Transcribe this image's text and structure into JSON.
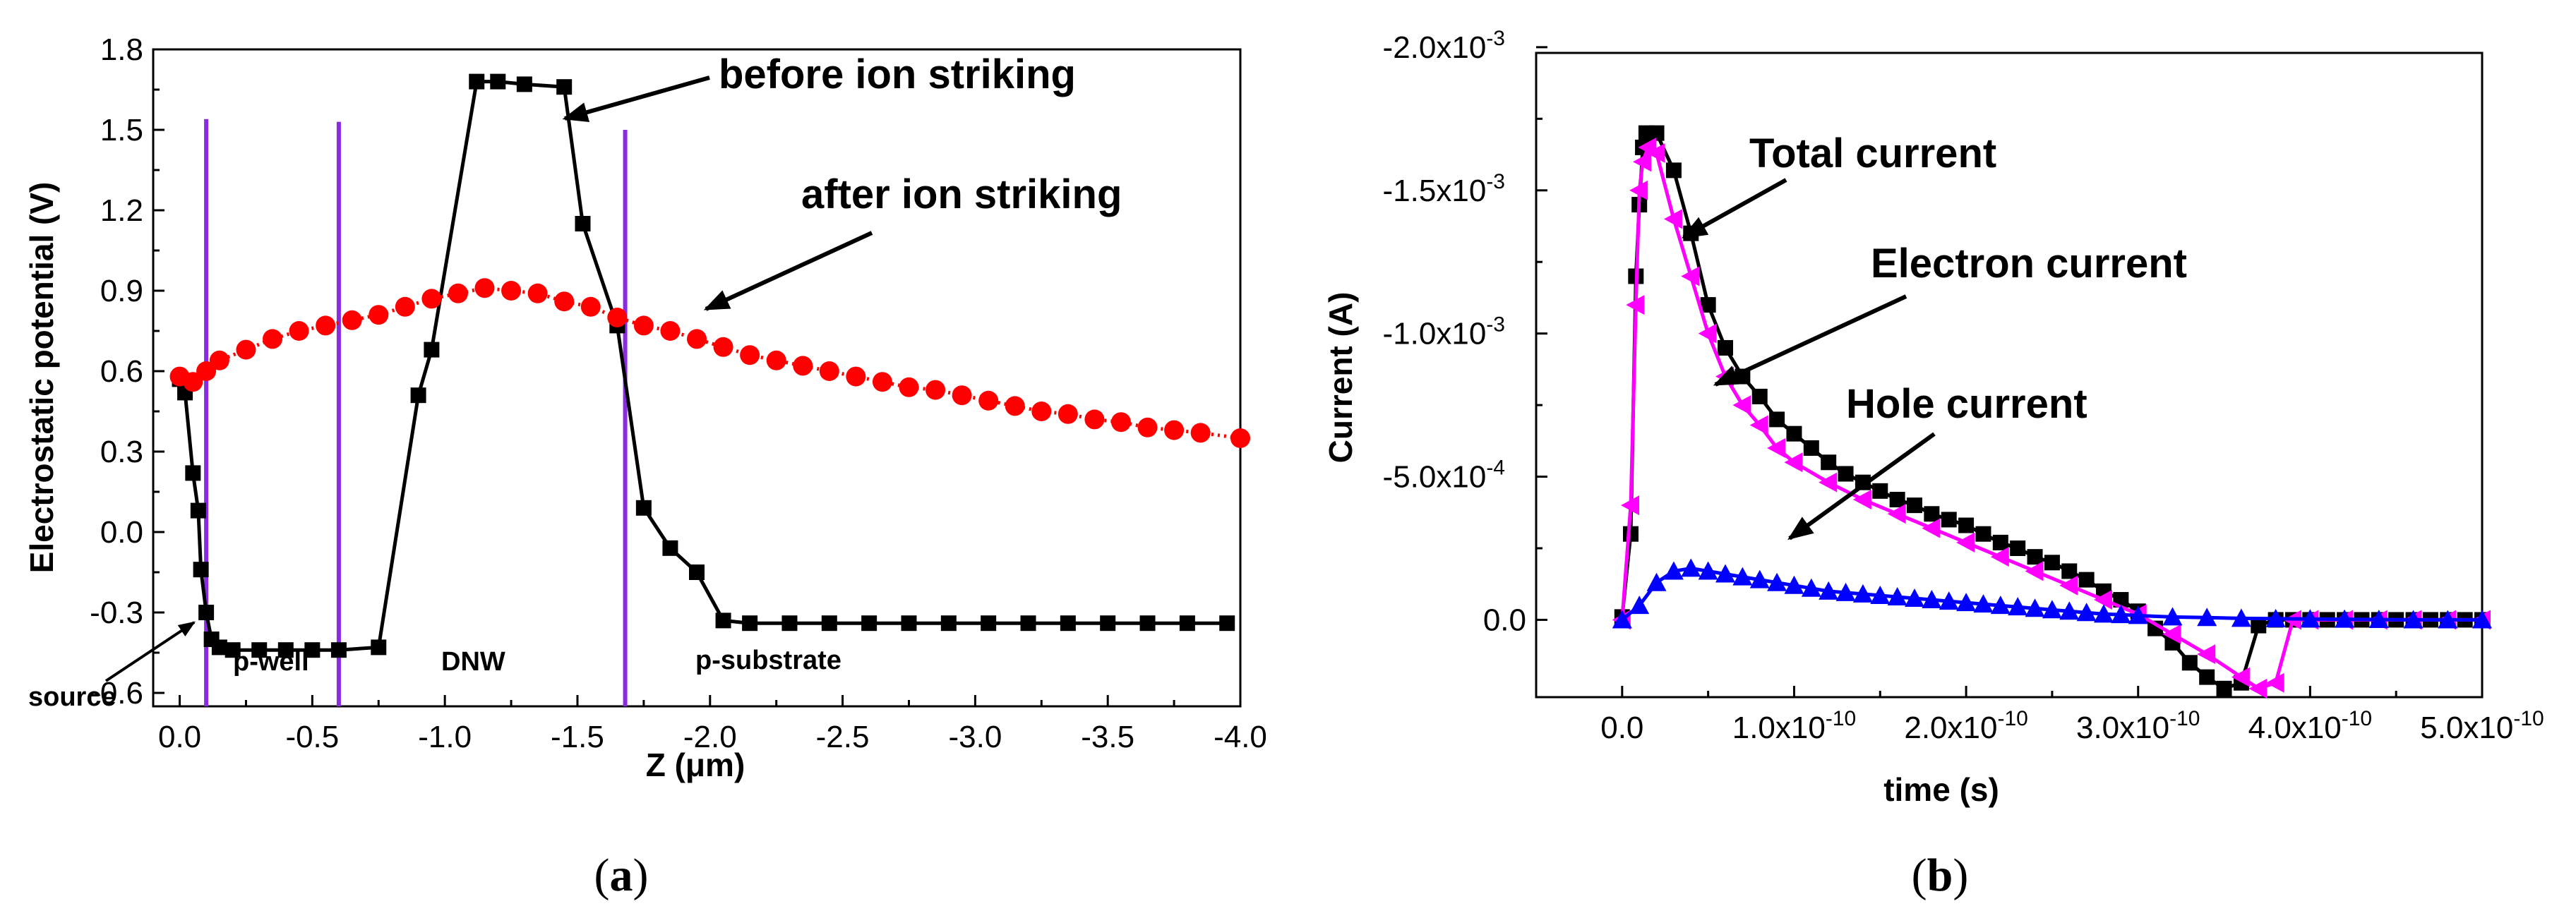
{
  "chart_data": [
    {
      "panel": "(a)",
      "type": "scatter",
      "xlabel": "Z (μm)",
      "ylabel": "Electrostatic potential (V)",
      "xlim": [
        0.1,
        -4.0
      ],
      "ylim": [
        -0.65,
        1.8
      ],
      "xticks": [
        0,
        -0.5,
        -1.0,
        -1.5,
        -2.0,
        -2.5,
        -3.0,
        -3.5,
        -4.0
      ],
      "xtick_labels": [
        "0.0",
        "-0.5",
        "-1.0",
        "-1.5",
        "-2.0",
        "-2.5",
        "-3.0",
        "-3.5",
        "-4.0"
      ],
      "yticks": [
        -0.6,
        -0.3,
        0.0,
        0.3,
        0.6,
        0.9,
        1.2,
        1.5,
        1.8
      ],
      "ytick_labels": [
        "-0.6",
        "-0.3",
        "0.0",
        "0.3",
        "0.6",
        "0.9",
        "1.2",
        "1.5",
        "1.8"
      ],
      "series": [
        {
          "name": "before ion striking",
          "color": "#000000",
          "marker": "square",
          "x": [
            0.0,
            -0.02,
            -0.05,
            -0.07,
            -0.08,
            -0.1,
            -0.12,
            -0.15,
            -0.2,
            -0.3,
            -0.4,
            -0.5,
            -0.6,
            -0.75,
            -0.9,
            -0.95,
            -1.12,
            -1.2,
            -1.3,
            -1.45,
            -1.52,
            -1.65,
            -1.75,
            -1.85,
            -1.95,
            -2.05,
            -2.15,
            -2.3,
            -2.45,
            -2.6,
            -2.75,
            -2.9,
            -3.05,
            -3.2,
            -3.35,
            -3.5,
            -3.65,
            -3.8,
            -3.95
          ],
          "y": [
            0.57,
            0.52,
            0.22,
            0.08,
            -0.14,
            -0.3,
            -0.4,
            -0.43,
            -0.44,
            -0.44,
            -0.44,
            -0.44,
            -0.44,
            -0.43,
            0.51,
            0.68,
            1.68,
            1.68,
            1.67,
            1.66,
            1.15,
            0.77,
            0.09,
            -0.06,
            -0.15,
            -0.33,
            -0.34,
            -0.34,
            -0.34,
            -0.34,
            -0.34,
            -0.34,
            -0.34,
            -0.34,
            -0.34,
            -0.34,
            -0.34,
            -0.34,
            -0.34
          ]
        },
        {
          "name": "after ion striking",
          "color": "#ff0000",
          "marker": "circle",
          "x": [
            0.0,
            -0.05,
            -0.1,
            -0.15,
            -0.25,
            -0.35,
            -0.45,
            -0.55,
            -0.65,
            -0.75,
            -0.85,
            -0.95,
            -1.05,
            -1.15,
            -1.25,
            -1.35,
            -1.45,
            -1.55,
            -1.65,
            -1.75,
            -1.85,
            -1.95,
            -2.05,
            -2.15,
            -2.25,
            -2.35,
            -2.45,
            -2.55,
            -2.65,
            -2.75,
            -2.85,
            -2.95,
            -3.05,
            -3.15,
            -3.25,
            -3.35,
            -3.45,
            -3.55,
            -3.65,
            -3.75,
            -3.85,
            -4.0
          ],
          "y": [
            0.58,
            0.56,
            0.6,
            0.64,
            0.68,
            0.72,
            0.75,
            0.77,
            0.79,
            0.81,
            0.84,
            0.87,
            0.89,
            0.91,
            0.9,
            0.89,
            0.86,
            0.84,
            0.8,
            0.77,
            0.75,
            0.72,
            0.69,
            0.66,
            0.64,
            0.62,
            0.6,
            0.58,
            0.56,
            0.54,
            0.53,
            0.51,
            0.49,
            0.47,
            0.45,
            0.44,
            0.42,
            0.41,
            0.39,
            0.38,
            0.37,
            0.35
          ]
        }
      ],
      "vertical_lines": {
        "color": "#8a2be2",
        "x": [
          -0.1,
          -0.6,
          -1.68
        ],
        "top": [
          1.54,
          1.53,
          1.5
        ]
      },
      "annotations": [
        "before ion striking",
        "after ion striking",
        "source",
        "p-well",
        "DNW",
        "p-substrate"
      ]
    },
    {
      "panel": "(b)",
      "type": "scatter",
      "xlabel": "time (s)",
      "ylabel": "Current (A)",
      "xlim": [
        -5e-11,
        5e-10
      ],
      "ylim": [
        0.00027,
        -0.00198
      ],
      "xticks": [
        0,
        1e-10,
        2e-10,
        3e-10,
        4e-10,
        5e-10
      ],
      "xtick_labels": [
        "0.0",
        "1.0x10",
        "2.0x10",
        "3.0x10",
        "4.0x10",
        "5.0x10"
      ],
      "xtick_exponents": [
        "",
        "-10",
        "-10",
        "-10",
        "-10",
        "-10"
      ],
      "yticks": [
        0.0,
        -0.0005,
        -0.001,
        -0.0015,
        -0.002
      ],
      "ytick_labels": [
        "0.0",
        "-5.0x10",
        "-1.0x10",
        "-1.5x10",
        "-2.0x10"
      ],
      "ytick_exponents": [
        "",
        "-4",
        "-3",
        "-3",
        "-3"
      ],
      "series": [
        {
          "name": "Total current",
          "color": "#000000",
          "marker": "square",
          "x": [
            0.0,
            5e-12,
            8e-12,
            1e-11,
            1.2e-11,
            1.4e-11,
            2e-11,
            3e-11,
            4e-11,
            5e-11,
            6e-11,
            7e-11,
            8e-11,
            9e-11,
            1e-10,
            1.1e-10,
            1.2e-10,
            1.3e-10,
            1.4e-10,
            1.5e-10,
            1.6e-10,
            1.7e-10,
            1.8e-10,
            1.9e-10,
            2e-10,
            2.1e-10,
            2.2e-10,
            2.3e-10,
            2.4e-10,
            2.5e-10,
            2.6e-10,
            2.7e-10,
            2.8e-10,
            2.9e-10,
            3e-10,
            3.1e-10,
            3.2e-10,
            3.3e-10,
            3.4e-10,
            3.5e-10,
            3.6e-10,
            3.7e-10,
            3.8e-10,
            3.9e-10,
            4e-10,
            4.1e-10,
            4.2e-10,
            4.3e-10,
            4.4e-10,
            4.5e-10,
            4.6e-10,
            4.7e-10,
            4.8e-10,
            4.9e-10,
            5e-10
          ],
          "y": [
            -1e-05,
            -0.0003,
            -0.0012,
            -0.00145,
            -0.00165,
            -0.0017,
            -0.0017,
            -0.00157,
            -0.00135,
            -0.0011,
            -0.00095,
            -0.00085,
            -0.00078,
            -0.0007,
            -0.00065,
            -0.0006,
            -0.00055,
            -0.00051,
            -0.00048,
            -0.00045,
            -0.00042,
            -0.0004,
            -0.00037,
            -0.00035,
            -0.00033,
            -0.0003,
            -0.00027,
            -0.00025,
            -0.00022,
            -0.0002,
            -0.00017,
            -0.00014,
            -0.0001,
            -7e-05,
            -3e-05,
            3e-05,
            8e-05,
            0.00015,
            0.0002,
            0.00024,
            0.00022,
            2e-05,
            0.0,
            0.0,
            0.0,
            0.0,
            0.0,
            0.0,
            0.0,
            0.0,
            0.0,
            0.0,
            0.0,
            0.0,
            0.0
          ]
        },
        {
          "name": "Electron current",
          "color": "#ff00ff",
          "marker": "triangle-left",
          "x": [
            0.0,
            5e-12,
            8e-12,
            1e-11,
            1.2e-11,
            1.5e-11,
            2e-11,
            3e-11,
            4e-11,
            5e-11,
            6e-11,
            7e-11,
            8e-11,
            9e-11,
            1e-10,
            1.2e-10,
            1.4e-10,
            1.6e-10,
            1.8e-10,
            2e-10,
            2.2e-10,
            2.4e-10,
            2.6e-10,
            2.8e-10,
            3e-10,
            3.2e-10,
            3.4e-10,
            3.6e-10,
            3.7e-10,
            3.8e-10,
            3.9e-10,
            4e-10,
            4.2e-10,
            4.4e-10,
            4.6e-10,
            4.8e-10,
            5e-10
          ],
          "y": [
            0.0,
            -0.0004,
            -0.0011,
            -0.0015,
            -0.0016,
            -0.00165,
            -0.00163,
            -0.0014,
            -0.0012,
            -0.001,
            -0.00085,
            -0.00075,
            -0.00068,
            -0.0006,
            -0.00055,
            -0.00048,
            -0.00042,
            -0.00037,
            -0.00032,
            -0.00027,
            -0.00022,
            -0.00017,
            -0.00012,
            -7e-05,
            -2e-05,
            5e-05,
            0.00012,
            0.0002,
            0.00024,
            0.00022,
            0.0,
            0.0,
            0.0,
            0.0,
            0.0,
            0.0,
            0.0
          ]
        },
        {
          "name": "Hole current",
          "color": "#0000ff",
          "marker": "triangle-up",
          "x": [
            0.0,
            1e-11,
            2e-11,
            3e-11,
            4e-11,
            5e-11,
            6e-11,
            7e-11,
            8e-11,
            9e-11,
            1e-10,
            1.1e-10,
            1.2e-10,
            1.3e-10,
            1.4e-10,
            1.5e-10,
            1.6e-10,
            1.7e-10,
            1.8e-10,
            1.9e-10,
            2e-10,
            2.1e-10,
            2.2e-10,
            2.3e-10,
            2.4e-10,
            2.5e-10,
            2.6e-10,
            2.7e-10,
            2.8e-10,
            2.9e-10,
            3e-10,
            3.2e-10,
            3.4e-10,
            3.6e-10,
            3.8e-10,
            4e-10,
            4.2e-10,
            4.4e-10,
            4.6e-10,
            4.8e-10,
            5e-10
          ],
          "y": [
            0.0,
            -5e-05,
            -0.00013,
            -0.00017,
            -0.00018,
            -0.00017,
            -0.00016,
            -0.00015,
            -0.00014,
            -0.00013,
            -0.00012,
            -0.00011,
            -0.0001,
            -9.5e-05,
            -9e-05,
            -8.5e-05,
            -8e-05,
            -7.5e-05,
            -7e-05,
            -6.5e-05,
            -6e-05,
            -5.5e-05,
            -5e-05,
            -4.5e-05,
            -4e-05,
            -3.5e-05,
            -3e-05,
            -2.5e-05,
            -2e-05,
            -1.8e-05,
            -1.5e-05,
            -1e-05,
            -8e-06,
            -5e-06,
            -4e-06,
            -3e-06,
            -2e-06,
            -1e-06,
            0.0,
            0.0,
            0.0
          ]
        }
      ],
      "annotations": [
        "Total current",
        "Electron current",
        "Hole current"
      ]
    }
  ]
}
